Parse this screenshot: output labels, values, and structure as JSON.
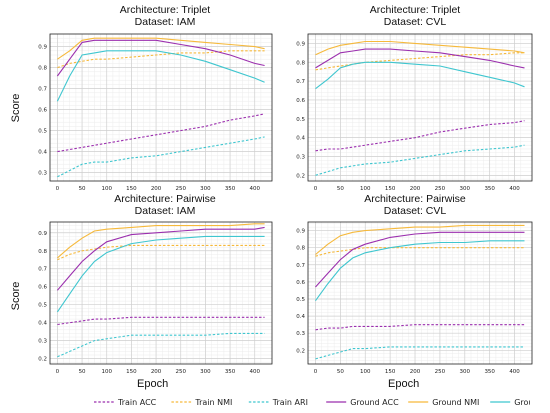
{
  "figure": {
    "ylabel": "Score",
    "xlabel": "Epoch"
  },
  "legend": [
    {
      "name": "Train ACC",
      "color": "#9b2fae",
      "dash": true
    },
    {
      "name": "Train NMI",
      "color": "#f6b93b",
      "dash": true
    },
    {
      "name": "Train ARI",
      "color": "#3fc6cf",
      "dash": true
    },
    {
      "name": "Ground ACC",
      "color": "#9b2fae",
      "dash": false
    },
    {
      "name": "Ground NMI",
      "color": "#f6b93b",
      "dash": false
    },
    {
      "name": "Ground ARI",
      "color": "#3fc6cf",
      "dash": false
    }
  ],
  "chart_data": [
    {
      "type": "line",
      "title": "Architecture: Triplet",
      "subtitle": "Dataset: IAM",
      "x": [
        0,
        25,
        50,
        75,
        100,
        150,
        200,
        250,
        300,
        350,
        400,
        420
      ],
      "xticks": [
        0,
        50,
        100,
        150,
        200,
        250,
        300,
        350,
        400
      ],
      "yticks": [
        0.3,
        0.4,
        0.5,
        0.6,
        0.7,
        0.8,
        0.9
      ],
      "ylim": [
        0.26,
        0.96
      ],
      "xlim": [
        -15,
        435
      ],
      "grid": true,
      "series": [
        {
          "name": "Train ACC",
          "values": [
            0.4,
            0.41,
            0.42,
            0.43,
            0.44,
            0.46,
            0.48,
            0.5,
            0.52,
            0.55,
            0.57,
            0.58
          ]
        },
        {
          "name": "Train NMI",
          "values": [
            0.8,
            0.82,
            0.83,
            0.84,
            0.84,
            0.85,
            0.86,
            0.87,
            0.87,
            0.88,
            0.88,
            0.88
          ]
        },
        {
          "name": "Train ARI",
          "values": [
            0.28,
            0.31,
            0.34,
            0.35,
            0.35,
            0.37,
            0.38,
            0.4,
            0.42,
            0.44,
            0.46,
            0.47
          ]
        },
        {
          "name": "Ground ACC",
          "values": [
            0.76,
            0.84,
            0.92,
            0.93,
            0.93,
            0.93,
            0.93,
            0.91,
            0.89,
            0.86,
            0.82,
            0.81
          ]
        },
        {
          "name": "Ground NMI",
          "values": [
            0.84,
            0.88,
            0.93,
            0.94,
            0.94,
            0.94,
            0.94,
            0.93,
            0.92,
            0.91,
            0.9,
            0.89
          ]
        },
        {
          "name": "Ground ARI",
          "values": [
            0.64,
            0.76,
            0.86,
            0.87,
            0.88,
            0.88,
            0.88,
            0.86,
            0.83,
            0.79,
            0.75,
            0.73
          ]
        }
      ]
    },
    {
      "type": "line",
      "title": "Architecture: Triplet",
      "subtitle": "Dataset: CVL",
      "x": [
        0,
        25,
        50,
        75,
        100,
        150,
        200,
        250,
        300,
        350,
        400,
        420
      ],
      "xticks": [
        0,
        50,
        100,
        150,
        200,
        250,
        300,
        350,
        400
      ],
      "yticks": [
        0.2,
        0.3,
        0.4,
        0.5,
        0.6,
        0.7,
        0.8,
        0.9
      ],
      "ylim": [
        0.17,
        0.95
      ],
      "xlim": [
        -15,
        435
      ],
      "grid": true,
      "series": [
        {
          "name": "Train ACC",
          "values": [
            0.33,
            0.34,
            0.34,
            0.35,
            0.36,
            0.38,
            0.4,
            0.43,
            0.45,
            0.47,
            0.48,
            0.49
          ]
        },
        {
          "name": "Train NMI",
          "values": [
            0.76,
            0.77,
            0.78,
            0.79,
            0.8,
            0.81,
            0.82,
            0.83,
            0.84,
            0.84,
            0.85,
            0.85
          ]
        },
        {
          "name": "Train ARI",
          "values": [
            0.2,
            0.22,
            0.24,
            0.25,
            0.26,
            0.27,
            0.29,
            0.31,
            0.33,
            0.34,
            0.35,
            0.36
          ]
        },
        {
          "name": "Ground ACC",
          "values": [
            0.77,
            0.81,
            0.85,
            0.86,
            0.87,
            0.87,
            0.86,
            0.85,
            0.83,
            0.81,
            0.78,
            0.77
          ]
        },
        {
          "name": "Ground NMI",
          "values": [
            0.84,
            0.87,
            0.89,
            0.9,
            0.91,
            0.91,
            0.9,
            0.89,
            0.88,
            0.87,
            0.86,
            0.85
          ]
        },
        {
          "name": "Ground ARI",
          "values": [
            0.66,
            0.71,
            0.77,
            0.79,
            0.8,
            0.8,
            0.79,
            0.78,
            0.75,
            0.72,
            0.69,
            0.67
          ]
        }
      ]
    },
    {
      "type": "line",
      "title": "Architecture: Pairwise",
      "subtitle": "Dataset: IAM",
      "x": [
        0,
        25,
        50,
        75,
        100,
        150,
        200,
        250,
        300,
        350,
        400,
        420
      ],
      "xticks": [
        0,
        50,
        100,
        150,
        200,
        250,
        300,
        350,
        400
      ],
      "yticks": [
        0.2,
        0.3,
        0.4,
        0.5,
        0.6,
        0.7,
        0.8,
        0.9
      ],
      "ylim": [
        0.17,
        0.96
      ],
      "xlim": [
        -15,
        435
      ],
      "grid": true,
      "series": [
        {
          "name": "Train ACC",
          "values": [
            0.39,
            0.4,
            0.41,
            0.42,
            0.42,
            0.43,
            0.43,
            0.43,
            0.43,
            0.43,
            0.43,
            0.43
          ]
        },
        {
          "name": "Train NMI",
          "values": [
            0.75,
            0.78,
            0.8,
            0.81,
            0.82,
            0.83,
            0.83,
            0.83,
            0.83,
            0.83,
            0.83,
            0.83
          ]
        },
        {
          "name": "Train ARI",
          "values": [
            0.21,
            0.24,
            0.27,
            0.3,
            0.31,
            0.33,
            0.33,
            0.33,
            0.33,
            0.34,
            0.34,
            0.34
          ]
        },
        {
          "name": "Ground ACC",
          "values": [
            0.58,
            0.66,
            0.74,
            0.8,
            0.85,
            0.89,
            0.9,
            0.91,
            0.92,
            0.92,
            0.92,
            0.93
          ]
        },
        {
          "name": "Ground NMI",
          "values": [
            0.76,
            0.82,
            0.87,
            0.91,
            0.92,
            0.93,
            0.94,
            0.94,
            0.94,
            0.94,
            0.95,
            0.95
          ]
        },
        {
          "name": "Ground ARI",
          "values": [
            0.46,
            0.56,
            0.66,
            0.74,
            0.79,
            0.84,
            0.86,
            0.87,
            0.88,
            0.88,
            0.88,
            0.88
          ]
        }
      ]
    },
    {
      "type": "line",
      "title": "Architecture: Pairwise",
      "subtitle": "Dataset: CVL",
      "x": [
        0,
        25,
        50,
        75,
        100,
        150,
        200,
        250,
        300,
        350,
        400,
        420
      ],
      "xticks": [
        0,
        50,
        100,
        150,
        200,
        250,
        300,
        350,
        400
      ],
      "yticks": [
        0.2,
        0.3,
        0.4,
        0.5,
        0.6,
        0.7,
        0.8,
        0.9
      ],
      "ylim": [
        0.12,
        0.95
      ],
      "xlim": [
        -15,
        435
      ],
      "grid": true,
      "series": [
        {
          "name": "Train ACC",
          "values": [
            0.32,
            0.33,
            0.33,
            0.34,
            0.34,
            0.34,
            0.35,
            0.35,
            0.35,
            0.35,
            0.35,
            0.35
          ]
        },
        {
          "name": "Train NMI",
          "values": [
            0.75,
            0.77,
            0.78,
            0.79,
            0.8,
            0.8,
            0.8,
            0.8,
            0.8,
            0.8,
            0.8,
            0.8
          ]
        },
        {
          "name": "Train ARI",
          "values": [
            0.15,
            0.17,
            0.19,
            0.21,
            0.21,
            0.22,
            0.22,
            0.22,
            0.22,
            0.22,
            0.22,
            0.22
          ]
        },
        {
          "name": "Ground ACC",
          "values": [
            0.57,
            0.65,
            0.73,
            0.79,
            0.82,
            0.86,
            0.88,
            0.89,
            0.89,
            0.89,
            0.89,
            0.89
          ]
        },
        {
          "name": "Ground NMI",
          "values": [
            0.76,
            0.82,
            0.87,
            0.89,
            0.9,
            0.91,
            0.92,
            0.92,
            0.93,
            0.93,
            0.93,
            0.93
          ]
        },
        {
          "name": "Ground ARI",
          "values": [
            0.49,
            0.59,
            0.68,
            0.74,
            0.77,
            0.8,
            0.82,
            0.83,
            0.83,
            0.84,
            0.84,
            0.84
          ]
        }
      ]
    }
  ]
}
